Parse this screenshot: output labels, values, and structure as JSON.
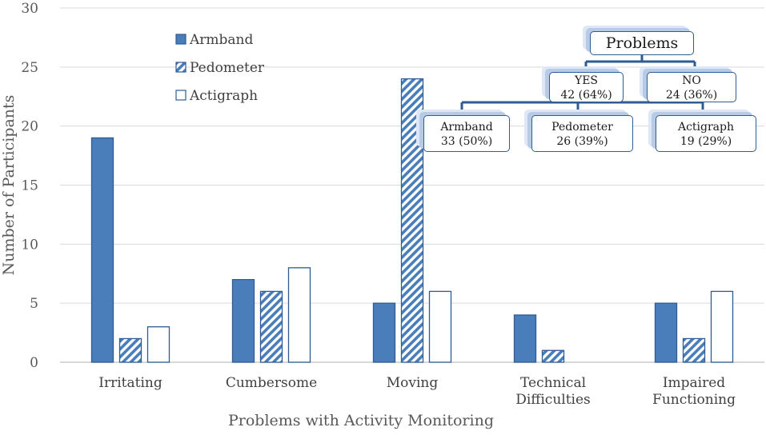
{
  "chart_data": {
    "type": "bar",
    "title": "",
    "xlabel": "Problems with Activity Monitoring",
    "ylabel": "Number of Participants",
    "ylim": [
      0,
      30
    ],
    "yticks": [
      "0",
      "5",
      "10",
      "15",
      "20",
      "25",
      "30"
    ],
    "categories": [
      [
        "Irritating"
      ],
      [
        "Cumbersome"
      ],
      [
        "Moving"
      ],
      [
        "Technical",
        "Difficulties"
      ],
      [
        "Impaired",
        "Functioning"
      ]
    ],
    "series": [
      {
        "name": "Armband",
        "style": "solid",
        "values": [
          19,
          7,
          5,
          4,
          5
        ]
      },
      {
        "name": "Pedometer",
        "style": "hatched",
        "values": [
          2,
          6,
          24,
          1,
          2
        ]
      },
      {
        "name": "Actigraph",
        "style": "outline",
        "values": [
          3,
          8,
          6,
          0,
          6
        ]
      }
    ],
    "legend_position": "top-left",
    "colors": {
      "primary": "#4a7ebb",
      "edge": "#2e5c93",
      "grid": "#d9d9d9",
      "axis": "#bfbfbf"
    }
  },
  "tree": {
    "root": "Problems",
    "yes": {
      "label": "YES",
      "value": "42 (64%)"
    },
    "no": {
      "label": "NO",
      "value": "24 (36%)"
    },
    "armband": {
      "label": "Armband",
      "value": "33 (50%)"
    },
    "pedometer": {
      "label": "Pedometer",
      "value": "26 (39%)"
    },
    "actigraph": {
      "label": "Actigraph",
      "value": "19 (29%)"
    }
  }
}
